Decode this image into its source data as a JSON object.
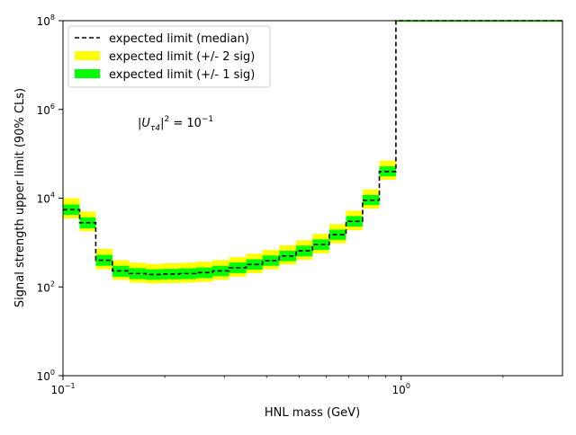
{
  "chart_data": {
    "type": "line",
    "title": "",
    "xlabel": "HNL mass (GeV)",
    "ylabel": "Signal strength upper limit (90% CLs)",
    "x_scale": "log",
    "y_scale": "log",
    "xlim": [
      0.1,
      3.0
    ],
    "ylim": [
      1,
      100000000
    ],
    "grid": false,
    "legend_position": "top-left",
    "x_ticks": [
      {
        "value": 0.1,
        "base": "10",
        "exp": "−1"
      },
      {
        "value": 1.0,
        "base": "10",
        "exp": "0"
      }
    ],
    "y_ticks": [
      {
        "value": 1,
        "base": "10",
        "exp": "0"
      },
      {
        "value": 100,
        "base": "10",
        "exp": "2"
      },
      {
        "value": 10000,
        "base": "10",
        "exp": "4"
      },
      {
        "value": 1000000,
        "base": "10",
        "exp": "6"
      },
      {
        "value": 100000000,
        "base": "10",
        "exp": "8"
      }
    ],
    "annotation": {
      "main": "|U",
      "sub": "τ4",
      "sup": "2",
      "rest": " = 10",
      "rest_sup": "−1",
      "position": "upper-left"
    },
    "legend": [
      {
        "label": "expected limit (median)",
        "style": "dashed",
        "color": "#000000"
      },
      {
        "label": "expected limit (+/- 2 sig)",
        "style": "fill",
        "color": "#ffff00"
      },
      {
        "label": "expected limit (+/- 1 sig)",
        "style": "fill",
        "color": "#00ff00"
      }
    ],
    "colors": {
      "median": "#000000",
      "band_2sig": "#ffff00",
      "band_1sig": "#00ff00"
    },
    "mass_edges": [
      0.1,
      0.112,
      0.125,
      0.14,
      0.157,
      0.176,
      0.197,
      0.221,
      0.247,
      0.277,
      0.31,
      0.348,
      0.389,
      0.436,
      0.489,
      0.547,
      0.613,
      0.687,
      0.769,
      0.862,
      0.965,
      3.0
    ],
    "series": [
      {
        "name": "expected limit (median)",
        "values": [
          5500,
          2800,
          400,
          230,
          200,
          190,
          195,
          200,
          210,
          230,
          270,
          320,
          390,
          500,
          650,
          900,
          1500,
          3000,
          9000,
          40000,
          100000000
        ]
      },
      {
        "name": "expected limit (+/- 1 sig) lower",
        "values": [
          4200,
          2100,
          300,
          170,
          150,
          145,
          148,
          150,
          158,
          175,
          205,
          245,
          300,
          380,
          490,
          680,
          1150,
          2300,
          7000,
          31000,
          100000000
        ]
      },
      {
        "name": "expected limit (+/- 1 sig) upper",
        "values": [
          7200,
          3700,
          530,
          300,
          265,
          250,
          255,
          262,
          275,
          300,
          355,
          420,
          510,
          655,
          850,
          1180,
          1960,
          3950,
          11800,
          52000,
          100000000
        ]
      },
      {
        "name": "expected limit (+/- 2 sig) lower",
        "values": [
          3500,
          1800,
          250,
          145,
          125,
          120,
          122,
          125,
          130,
          145,
          170,
          205,
          250,
          320,
          410,
          570,
          960,
          1900,
          5800,
          26000,
          100000000
        ]
      },
      {
        "name": "expected limit (+/- 2 sig) upper",
        "values": [
          10000,
          5000,
          720,
          400,
          350,
          330,
          340,
          350,
          370,
          400,
          470,
          560,
          680,
          870,
          1130,
          1570,
          2600,
          5200,
          15700,
          70000,
          100000000
        ]
      }
    ]
  }
}
